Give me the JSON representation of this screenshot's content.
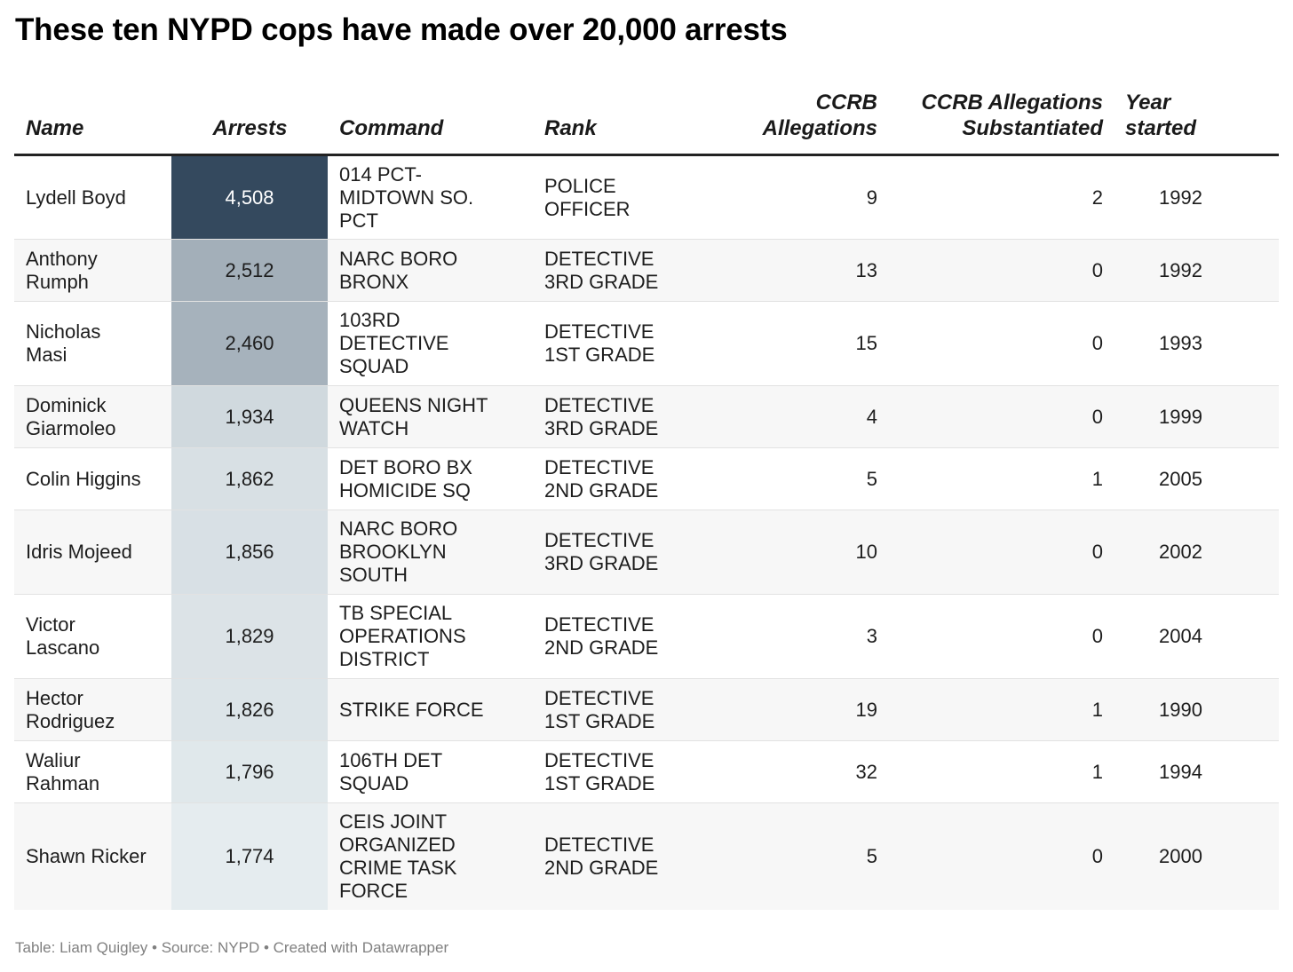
{
  "title": "These ten NYPD cops have made over 20,000 arrests",
  "footer": "Table: Liam Quigley • Source: NYPD • Created with Datawrapper",
  "colors": {
    "heat_low": "#e5ecef",
    "heat_high": "#34495e",
    "text_dark": "#1d1d1d",
    "text_light": "#ffffff"
  },
  "chart_data": {
    "type": "table",
    "title": "These ten NYPD cops have made over 20,000 arrests",
    "columns": [
      "Name",
      "Arrests",
      "Command",
      "Rank",
      "CCRB Allegations",
      "CCRB Allegations Substantiated",
      "Year started"
    ],
    "header_lines": {
      "name": [
        "Name"
      ],
      "arrests": [
        "Arrests"
      ],
      "command": [
        "Command"
      ],
      "rank": [
        "Rank"
      ],
      "ccrb": [
        "CCRB",
        "Allegations"
      ],
      "substantiated": [
        "CCRB Allegations",
        "Substantiated"
      ],
      "year": [
        "Year",
        "started"
      ]
    },
    "rows": [
      {
        "name": [
          "Lydell Boyd"
        ],
        "arrests": "4,508",
        "arrests_value": 4508,
        "command": [
          "014 PCT-",
          "MIDTOWN SO.",
          "PCT"
        ],
        "rank": [
          "POLICE",
          "OFFICER"
        ],
        "ccrb": "9",
        "substantiated": "2",
        "year": "1992"
      },
      {
        "name": [
          "Anthony",
          "Rumph"
        ],
        "arrests": "2,512",
        "arrests_value": 2512,
        "command": [
          "NARC BORO",
          "BRONX"
        ],
        "rank": [
          "DETECTIVE",
          "3RD GRADE"
        ],
        "ccrb": "13",
        "substantiated": "0",
        "year": "1992"
      },
      {
        "name": [
          "Nicholas",
          "Masi"
        ],
        "arrests": "2,460",
        "arrests_value": 2460,
        "command": [
          "103RD",
          "DETECTIVE",
          "SQUAD"
        ],
        "rank": [
          "DETECTIVE",
          "1ST GRADE"
        ],
        "ccrb": "15",
        "substantiated": "0",
        "year": "1993"
      },
      {
        "name": [
          "Dominick",
          "Giarmoleo"
        ],
        "arrests": "1,934",
        "arrests_value": 1934,
        "command": [
          "QUEENS NIGHT",
          "WATCH"
        ],
        "rank": [
          "DETECTIVE",
          "3RD GRADE"
        ],
        "ccrb": "4",
        "substantiated": "0",
        "year": "1999"
      },
      {
        "name": [
          "Colin Higgins"
        ],
        "arrests": "1,862",
        "arrests_value": 1862,
        "command": [
          "DET BORO BX",
          "HOMICIDE SQ"
        ],
        "rank": [
          "DETECTIVE",
          "2ND GRADE"
        ],
        "ccrb": "5",
        "substantiated": "1",
        "year": "2005"
      },
      {
        "name": [
          "Idris Mojeed"
        ],
        "arrests": "1,856",
        "arrests_value": 1856,
        "command": [
          "NARC BORO",
          "BROOKLYN",
          "SOUTH"
        ],
        "rank": [
          "DETECTIVE",
          "3RD GRADE"
        ],
        "ccrb": "10",
        "substantiated": "0",
        "year": "2002"
      },
      {
        "name": [
          "Victor",
          "Lascano"
        ],
        "arrests": "1,829",
        "arrests_value": 1829,
        "command": [
          "TB SPECIAL",
          "OPERATIONS",
          "DISTRICT"
        ],
        "rank": [
          "DETECTIVE",
          "2ND GRADE"
        ],
        "ccrb": "3",
        "substantiated": "0",
        "year": "2004"
      },
      {
        "name": [
          "Hector",
          "Rodriguez"
        ],
        "arrests": "1,826",
        "arrests_value": 1826,
        "command": [
          "STRIKE FORCE"
        ],
        "rank": [
          "DETECTIVE",
          "1ST GRADE"
        ],
        "ccrb": "19",
        "substantiated": "1",
        "year": "1990"
      },
      {
        "name": [
          "Waliur",
          "Rahman"
        ],
        "arrests": "1,796",
        "arrests_value": 1796,
        "command": [
          "106TH DET",
          "SQUAD"
        ],
        "rank": [
          "DETECTIVE",
          "1ST GRADE"
        ],
        "ccrb": "32",
        "substantiated": "1",
        "year": "1994"
      },
      {
        "name": [
          "Shawn Ricker"
        ],
        "arrests": "1,774",
        "arrests_value": 1774,
        "command": [
          "CEIS JOINT",
          "ORGANIZED",
          "CRIME TASK",
          "FORCE"
        ],
        "rank": [
          "DETECTIVE",
          "2ND GRADE"
        ],
        "ccrb": "5",
        "substantiated": "0",
        "year": "2000"
      }
    ]
  }
}
